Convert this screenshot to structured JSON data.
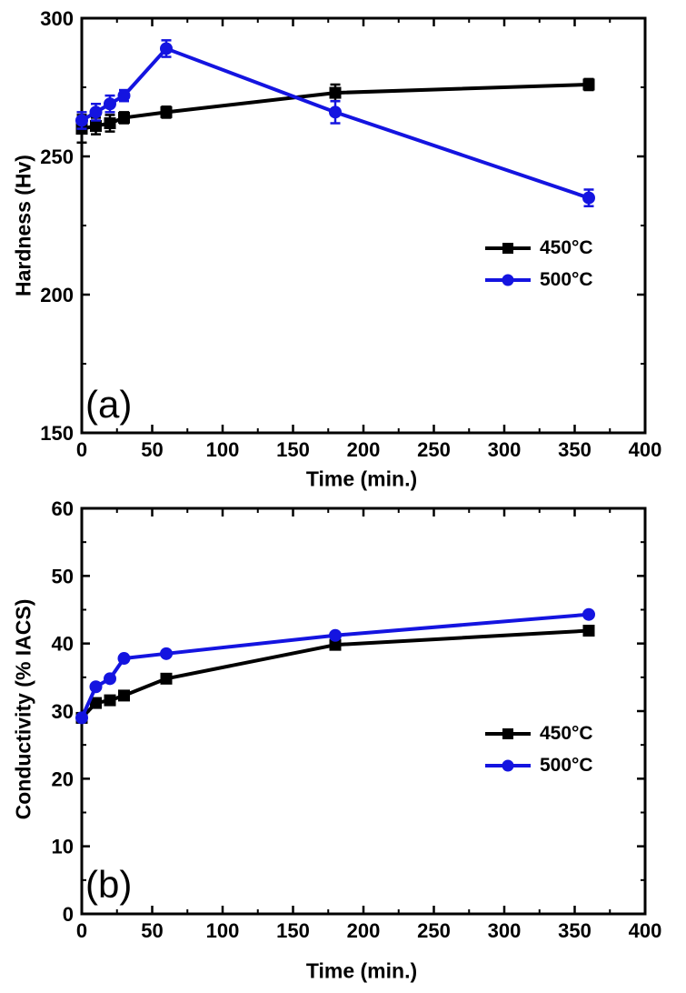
{
  "figure": {
    "background": "#ffffff",
    "axis_color": "#000000"
  },
  "chart_data": [
    {
      "type": "line",
      "panel_label": "(a)",
      "xlabel": "Time (min.)",
      "ylabel": "Hardness (Hv)",
      "xlim": [
        0,
        400
      ],
      "ylim": [
        150,
        300
      ],
      "x_major_ticks": [
        0,
        50,
        100,
        150,
        200,
        250,
        300,
        350,
        400
      ],
      "x_minor_step": 25,
      "y_major_ticks": [
        150,
        200,
        250,
        300
      ],
      "y_minor_ticks": [
        175,
        225,
        275
      ],
      "grid": false,
      "legend_position": "inside-right-middle",
      "x": [
        0,
        10,
        20,
        30,
        60,
        180,
        360
      ],
      "series": [
        {
          "name": "450°C",
          "color": "#000000",
          "marker": "square",
          "values": [
            260,
            261,
            262,
            264,
            266,
            273,
            276
          ],
          "yerr": [
            5,
            3,
            3,
            2,
            2,
            3,
            2
          ]
        },
        {
          "name": "500°C",
          "color": "#1414e0",
          "marker": "circle",
          "values": [
            263,
            266,
            269,
            272,
            289,
            266,
            235
          ],
          "yerr": [
            3,
            3,
            3,
            2,
            3,
            4,
            3
          ]
        }
      ]
    },
    {
      "type": "line",
      "panel_label": "(b)",
      "xlabel": "Time (min.)",
      "ylabel": "Conductivity (% IACS)",
      "xlim": [
        0,
        400
      ],
      "ylim": [
        0,
        60
      ],
      "x_major_ticks": [
        0,
        50,
        100,
        150,
        200,
        250,
        300,
        350,
        400
      ],
      "x_minor_step": 25,
      "y_major_ticks": [
        0,
        10,
        20,
        30,
        40,
        50,
        60
      ],
      "y_minor_ticks": [
        5,
        15,
        25,
        35,
        45,
        55
      ],
      "grid": false,
      "legend_position": "inside-right-middle",
      "x": [
        0,
        10,
        20,
        30,
        60,
        180,
        360
      ],
      "series": [
        {
          "name": "450°C",
          "color": "#000000",
          "marker": "square",
          "values": [
            29,
            31.2,
            31.6,
            32.3,
            34.8,
            39.8,
            41.9
          ]
        },
        {
          "name": "500°C",
          "color": "#1414e0",
          "marker": "circle",
          "values": [
            29,
            33.6,
            34.8,
            37.8,
            38.5,
            41.2,
            44.3
          ]
        }
      ]
    }
  ]
}
